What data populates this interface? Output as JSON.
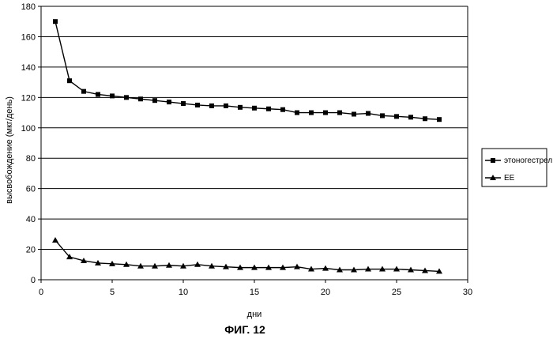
{
  "chart_data": {
    "type": "line",
    "title": "",
    "xlabel": "дни",
    "ylabel": "высвобождение (мкг/день)",
    "xlim": [
      0,
      30
    ],
    "ylim": [
      0,
      180
    ],
    "xticks": [
      0,
      5,
      10,
      15,
      20,
      25,
      30
    ],
    "yticks": [
      0,
      20,
      40,
      60,
      80,
      100,
      120,
      140,
      160,
      180
    ],
    "grid": "horizontal",
    "legend_position": "right",
    "x": [
      1,
      2,
      3,
      4,
      5,
      6,
      7,
      8,
      9,
      10,
      11,
      12,
      13,
      14,
      15,
      16,
      17,
      18,
      19,
      20,
      21,
      22,
      23,
      24,
      25,
      26,
      27,
      28
    ],
    "series": [
      {
        "name": "этоногестрел",
        "marker": "square",
        "values": [
          170,
          131,
          124,
          122,
          121,
          120,
          119,
          118,
          117,
          116,
          115,
          114.5,
          114.5,
          113.5,
          113,
          112.5,
          112,
          110,
          110,
          110,
          110,
          109,
          109.5,
          108,
          107.5,
          107,
          106,
          105.5
        ]
      },
      {
        "name": "EE",
        "marker": "triangle",
        "values": [
          26,
          15,
          12.5,
          11,
          10.5,
          10,
          9,
          9,
          9.5,
          9,
          10,
          9,
          8.5,
          8,
          8,
          8,
          8,
          8.5,
          7,
          7.5,
          6.5,
          6.5,
          7,
          7,
          7,
          6.5,
          6,
          5.5
        ]
      }
    ]
  },
  "caption": "ФИГ. 12",
  "colors": {
    "line": "#000000",
    "grid": "#000000",
    "background": "#ffffff"
  }
}
